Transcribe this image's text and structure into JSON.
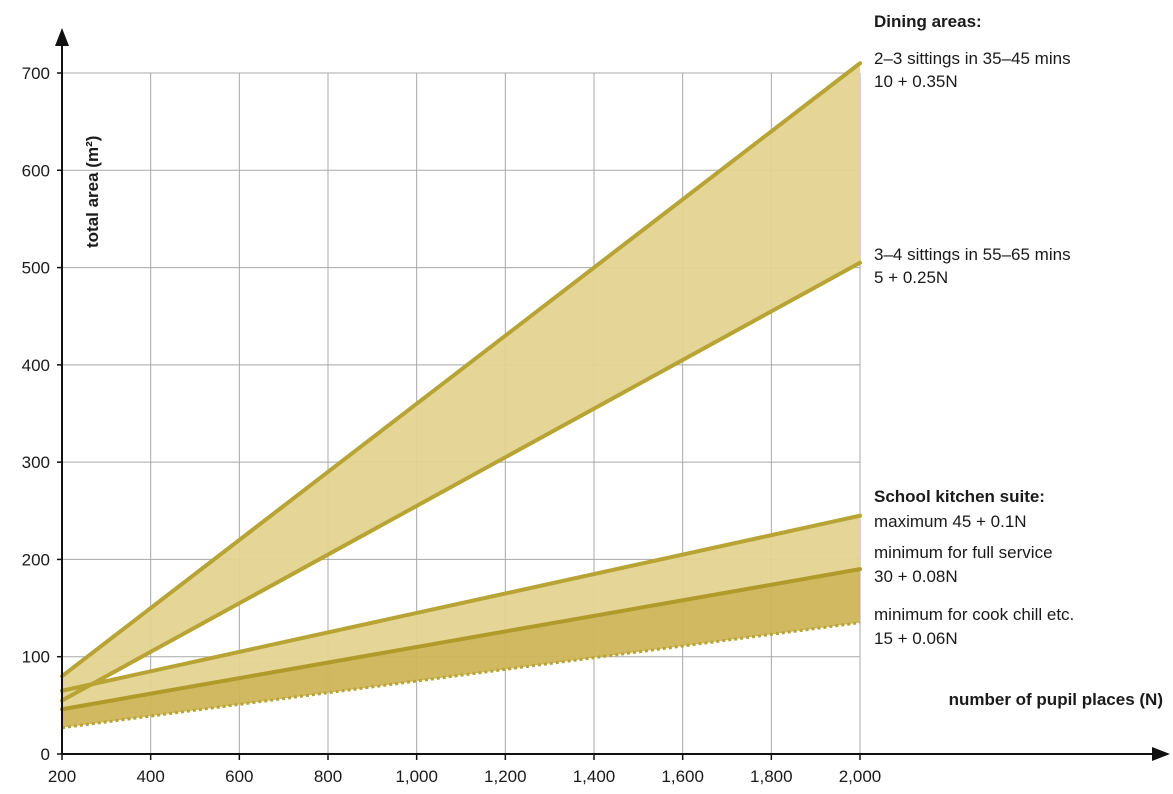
{
  "chart_data": {
    "type": "area",
    "xlabel": "number of pupil places (N)",
    "ylabel": "total area (m²)",
    "xlim": [
      200,
      2000
    ],
    "ylim": [
      0,
      700
    ],
    "x_ticks": [
      200,
      400,
      600,
      800,
      1000,
      1200,
      1400,
      1600,
      1800,
      2000
    ],
    "x_tick_labels": [
      "200",
      "400",
      "600",
      "800",
      "1,000",
      "1,200",
      "1,400",
      "1,600",
      "1,800",
      "2,000"
    ],
    "y_ticks": [
      0,
      100,
      200,
      300,
      400,
      500,
      600,
      700
    ],
    "y_tick_labels": [
      "0",
      "100",
      "200",
      "300",
      "400",
      "500",
      "600",
      "700"
    ],
    "grid": true,
    "series": [
      {
        "name": "2–3 sittings in 35–45 mins",
        "formula": "10 + 0.35N",
        "x": [
          200,
          2000
        ],
        "y": [
          80,
          710
        ],
        "color": "#b8a434",
        "style": "solid"
      },
      {
        "name": "3–4 sittings in 55–65 mins",
        "formula": "5 + 0.25N",
        "x": [
          200,
          2000
        ],
        "y": [
          55,
          505
        ],
        "color": "#b8a434",
        "style": "solid"
      },
      {
        "name": "maximum",
        "formula": "45 + 0.1N",
        "x": [
          200,
          2000
        ],
        "y": [
          65,
          245
        ],
        "color": "#b8a434",
        "style": "solid"
      },
      {
        "name": "minimum for full service",
        "formula": "30 + 0.08N",
        "x": [
          200,
          2000
        ],
        "y": [
          46,
          190
        ],
        "color": "#b09a2a",
        "style": "solid"
      },
      {
        "name": "minimum for cook chill etc.",
        "formula": "15 + 0.06N",
        "x": [
          200,
          2000
        ],
        "y": [
          27,
          135
        ],
        "color": "#b8a434",
        "style": "dotted"
      }
    ],
    "bands": [
      {
        "between": [
          0,
          1
        ],
        "fill": "#e4d390"
      },
      {
        "between": [
          2,
          3
        ],
        "fill": "#e4d390"
      },
      {
        "between": [
          3,
          4
        ],
        "fill": "#cdb557"
      }
    ],
    "annotations": {
      "dining_header": "Dining areas:",
      "dining_1_line1": "2–3 sittings in 35–45 mins",
      "dining_1_line2": "10 + 0.35N",
      "dining_2_line1": "3–4 sittings in 55–65 mins",
      "dining_2_line2": "5 + 0.25N",
      "kitchen_header": "School kitchen suite:",
      "kitchen_max": "maximum 45 + 0.1N",
      "kitchen_full_line1": "minimum  for full service",
      "kitchen_full_line2": "30 + 0.08N",
      "kitchen_chill_line1": "minimum  for cook chill etc.",
      "kitchen_chill_line2": "15 + 0.06N"
    }
  }
}
